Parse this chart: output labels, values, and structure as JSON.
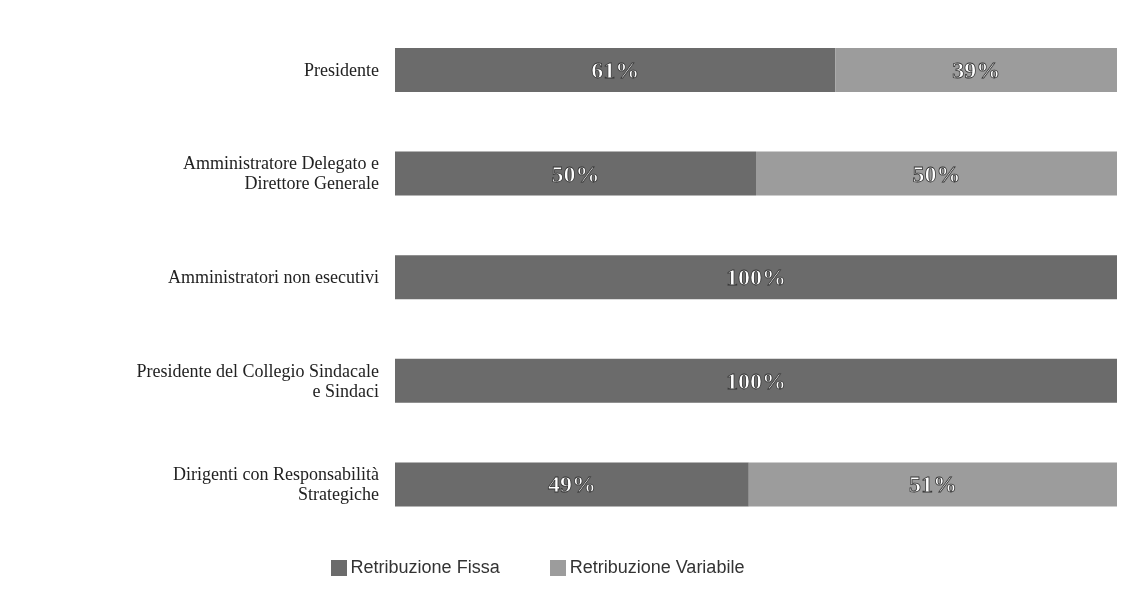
{
  "chart_data": {
    "type": "bar",
    "orientation": "horizontal",
    "stacked": true,
    "categories": [
      "Presidente",
      "Amministratore Delegato e Direttore Generale",
      "Amministratori non esecutivi",
      "Presidente del Collegio Sindacale e Sindaci",
      "Dirigenti con Responsabilità Strategiche"
    ],
    "series": [
      {
        "name": "Retribuzione Fissa",
        "color": "#6b6b6b",
        "values": [
          61,
          50,
          100,
          100,
          49
        ],
        "value_labels": [
          "61%",
          "50%",
          "100%",
          "100%",
          "49%"
        ]
      },
      {
        "name": "Retribuzione Variabile",
        "color": "#9c9c9c",
        "values": [
          39,
          50,
          null,
          null,
          51
        ],
        "value_labels": [
          "39%",
          "50%",
          null,
          null,
          "51%"
        ]
      }
    ],
    "xlim": [
      0,
      100
    ],
    "legend": "bottom",
    "tick_labels": "y"
  }
}
